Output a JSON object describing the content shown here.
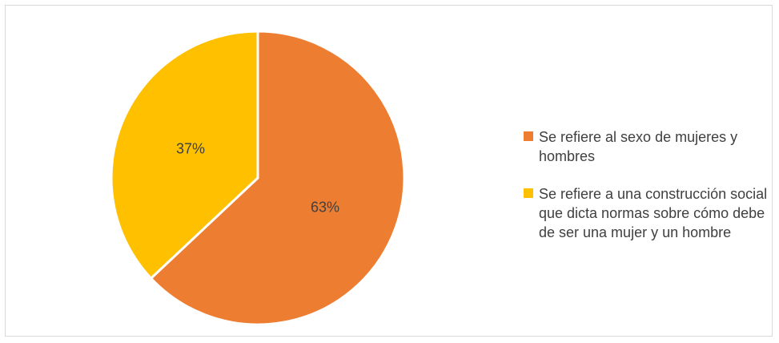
{
  "chart_data": {
    "type": "pie",
    "slices": [
      {
        "label": "Se refiere al sexo de mujeres y hombres",
        "value": 63,
        "display": "63%",
        "color": "#ED7D31"
      },
      {
        "label": "Se refiere a una construcción social que dicta normas sobre cómo debe de ser una mujer y un hombre",
        "value": 37,
        "display": "37%",
        "color": "#FFC000"
      }
    ],
    "start": "top",
    "direction": "clockwise",
    "legend_position": "right",
    "slice_border_color": "#FFFFFF"
  }
}
